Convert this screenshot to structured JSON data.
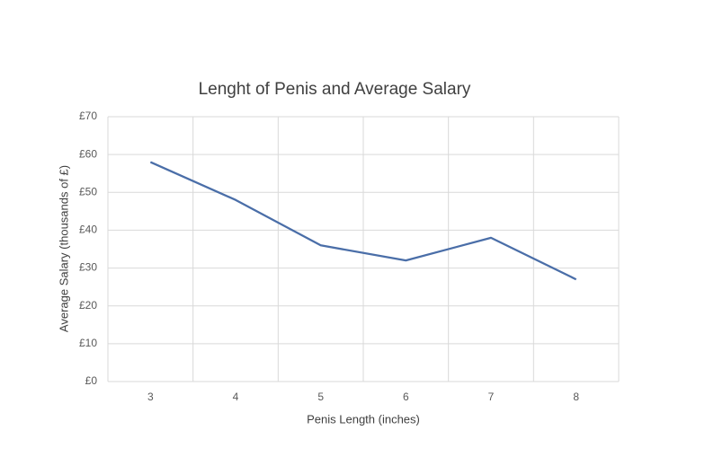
{
  "chart_data": {
    "type": "line",
    "title": "Lenght of Penis and Average Salary",
    "x_label": "Penis Length (inches)",
    "y_label": "Average Salary (thousands of £)",
    "categories": [
      "3",
      "4",
      "5",
      "6",
      "7",
      "8"
    ],
    "values": [
      58,
      48,
      36,
      32,
      38,
      27
    ],
    "color": "#4a6ea8",
    "ylim": [
      0,
      70
    ],
    "yticks": [
      {
        "value": 0,
        "label": "£0"
      },
      {
        "value": 10,
        "label": "£10"
      },
      {
        "value": 20,
        "label": "£20"
      },
      {
        "value": 30,
        "label": "£30"
      },
      {
        "value": 40,
        "label": "£40"
      },
      {
        "value": 50,
        "label": "£50"
      },
      {
        "value": 60,
        "label": "£60"
      },
      {
        "value": 70,
        "label": "£70"
      }
    ],
    "grid": true
  }
}
